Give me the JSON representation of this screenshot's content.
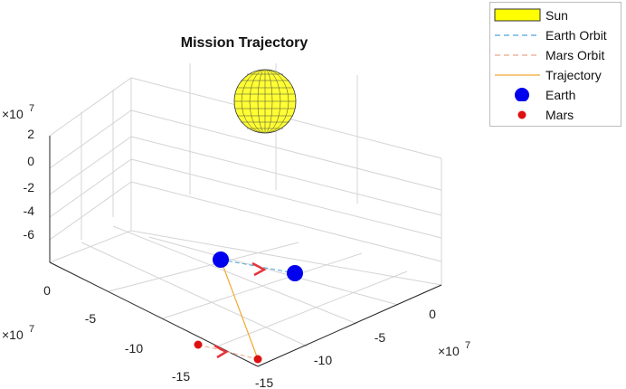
{
  "chart_data": {
    "type": "scatter3d",
    "title": "Mission Trajectory",
    "x_axis": {
      "ticks": [
        "-15",
        "-10",
        "-5",
        "0"
      ],
      "exponent_label": "×10",
      "exponent": "7"
    },
    "y_axis": {
      "ticks": [
        "-15",
        "-10",
        "-5",
        "0"
      ],
      "exponent_label": "×10",
      "exponent": "7"
    },
    "z_axis": {
      "ticks": [
        "2",
        "0",
        "-2",
        "-4",
        "-6"
      ],
      "exponent_label": "×10",
      "exponent": "7"
    },
    "grid": true,
    "legend_position": "top-right",
    "legend": [
      {
        "label": "Sun",
        "kind": "patch",
        "color": "#ffff00"
      },
      {
        "label": "Earth Orbit",
        "kind": "dashed-line",
        "color": "#4da6d9"
      },
      {
        "label": "Mars Orbit",
        "kind": "dashed-line",
        "color": "#e8a88a"
      },
      {
        "label": "Trajectory",
        "kind": "line",
        "color": "#f0a830"
      },
      {
        "label": "Earth",
        "kind": "marker-large",
        "color": "#0000ee"
      },
      {
        "label": "Mars",
        "kind": "marker-small",
        "color": "#dd1111"
      }
    ]
  }
}
